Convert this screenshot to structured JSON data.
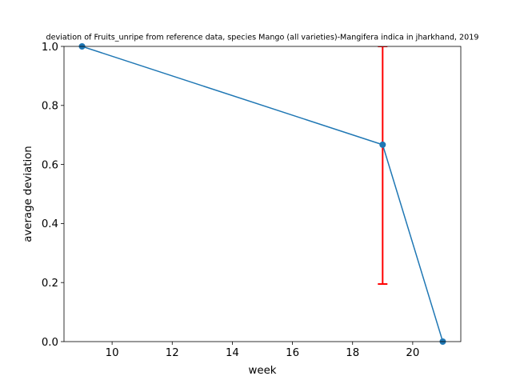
{
  "chart_data": {
    "type": "line",
    "title": "deviation of Fruits_unripe from reference data, species Mango (all varieties)-Mangifera indica in jharkhand, 2019",
    "xlabel": "week",
    "ylabel": "average deviation",
    "xlim": [
      8.4,
      21.6
    ],
    "ylim": [
      0.0,
      1.0
    ],
    "xticks": [
      10,
      12,
      14,
      16,
      18,
      20
    ],
    "yticks": [
      0.0,
      0.2,
      0.4,
      0.6,
      0.8,
      1.0
    ],
    "grid": false,
    "series": [
      {
        "x": [
          9,
          19,
          21
        ],
        "y": [
          1.0,
          0.667,
          0.0
        ],
        "color": "#1f77b4",
        "marker": "circle"
      }
    ],
    "error_bars": [
      {
        "x": 19,
        "y_low": 0.195,
        "y_high": 1.0,
        "color": "#ff0000"
      }
    ]
  }
}
